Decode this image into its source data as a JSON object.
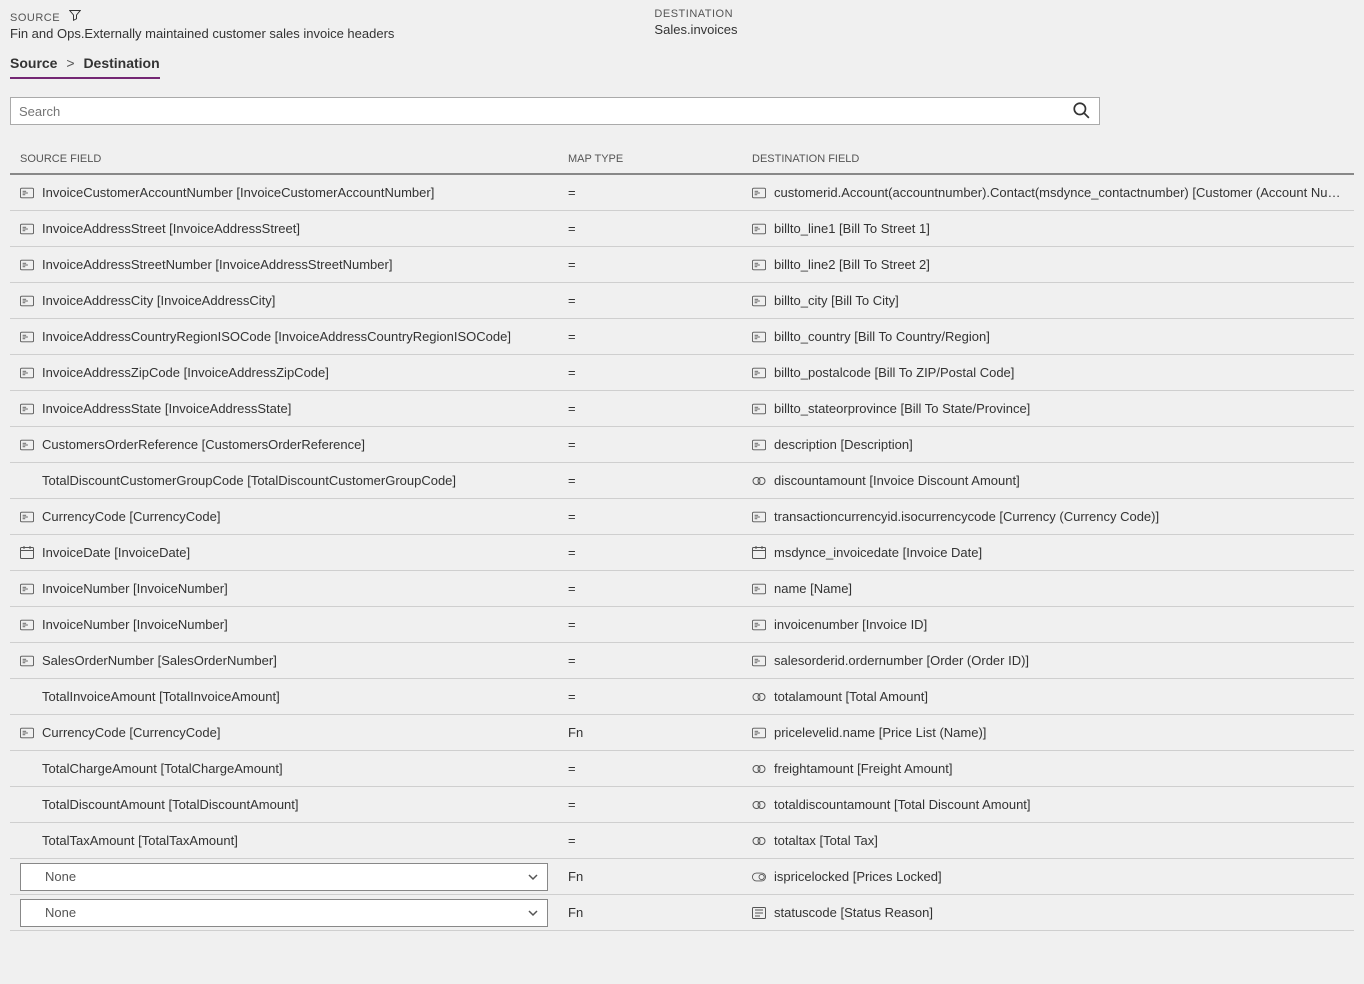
{
  "header": {
    "source_label": "SOURCE",
    "source_value": "Fin and Ops.Externally maintained customer sales invoice headers",
    "destination_label": "DESTINATION",
    "destination_value": "Sales.invoices"
  },
  "breadcrumb": {
    "part1": "Source",
    "sep": ">",
    "part2": "Destination"
  },
  "search": {
    "placeholder": "Search"
  },
  "columns": {
    "source": "SOURCE FIELD",
    "map": "MAP TYPE",
    "dest": "DESTINATION FIELD"
  },
  "rows": [
    {
      "src_icon": "text",
      "src": "InvoiceCustomerAccountNumber [InvoiceCustomerAccountNumber]",
      "map": "=",
      "dst_icon": "text",
      "dst": "customerid.Account(accountnumber).Contact(msdynce_contactnumber) [Customer (Account Number/Cont..."
    },
    {
      "src_icon": "text",
      "src": "InvoiceAddressStreet [InvoiceAddressStreet]",
      "map": "=",
      "dst_icon": "text",
      "dst": "billto_line1 [Bill To Street 1]"
    },
    {
      "src_icon": "text",
      "src": "InvoiceAddressStreetNumber [InvoiceAddressStreetNumber]",
      "map": "=",
      "dst_icon": "text",
      "dst": "billto_line2 [Bill To Street 2]"
    },
    {
      "src_icon": "text",
      "src": "InvoiceAddressCity [InvoiceAddressCity]",
      "map": "=",
      "dst_icon": "text",
      "dst": "billto_city [Bill To City]"
    },
    {
      "src_icon": "text",
      "src": "InvoiceAddressCountryRegionISOCode [InvoiceAddressCountryRegionISOCode]",
      "map": "=",
      "dst_icon": "text",
      "dst": "billto_country [Bill To Country/Region]"
    },
    {
      "src_icon": "text",
      "src": "InvoiceAddressZipCode [InvoiceAddressZipCode]",
      "map": "=",
      "dst_icon": "text",
      "dst": "billto_postalcode [Bill To ZIP/Postal Code]"
    },
    {
      "src_icon": "text",
      "src": "InvoiceAddressState [InvoiceAddressState]",
      "map": "=",
      "dst_icon": "text",
      "dst": "billto_stateorprovince [Bill To State/Province]"
    },
    {
      "src_icon": "text",
      "src": "CustomersOrderReference [CustomersOrderReference]",
      "map": "=",
      "dst_icon": "text",
      "dst": "description [Description]"
    },
    {
      "src_icon": "none",
      "src": "TotalDiscountCustomerGroupCode [TotalDiscountCustomerGroupCode]",
      "map": "=",
      "dst_icon": "money",
      "dst": "discountamount [Invoice Discount Amount]"
    },
    {
      "src_icon": "text",
      "src": "CurrencyCode [CurrencyCode]",
      "map": "=",
      "dst_icon": "text",
      "dst": "transactioncurrencyid.isocurrencycode [Currency (Currency Code)]"
    },
    {
      "src_icon": "date",
      "src": "InvoiceDate [InvoiceDate]",
      "map": "=",
      "dst_icon": "date",
      "dst": "msdynce_invoicedate [Invoice Date]"
    },
    {
      "src_icon": "text",
      "src": "InvoiceNumber [InvoiceNumber]",
      "map": "=",
      "dst_icon": "text",
      "dst": "name [Name]"
    },
    {
      "src_icon": "text",
      "src": "InvoiceNumber [InvoiceNumber]",
      "map": "=",
      "dst_icon": "text",
      "dst": "invoicenumber [Invoice ID]"
    },
    {
      "src_icon": "text",
      "src": "SalesOrderNumber [SalesOrderNumber]",
      "map": "=",
      "dst_icon": "text",
      "dst": "salesorderid.ordernumber [Order (Order ID)]"
    },
    {
      "src_icon": "none",
      "src": "TotalInvoiceAmount [TotalInvoiceAmount]",
      "map": "=",
      "dst_icon": "money",
      "dst": "totalamount [Total Amount]"
    },
    {
      "src_icon": "text",
      "src": "CurrencyCode [CurrencyCode]",
      "map": "Fn",
      "dst_icon": "text",
      "dst": "pricelevelid.name [Price List (Name)]"
    },
    {
      "src_icon": "none",
      "src": "TotalChargeAmount [TotalChargeAmount]",
      "map": "=",
      "dst_icon": "money",
      "dst": "freightamount [Freight Amount]"
    },
    {
      "src_icon": "none",
      "src": "TotalDiscountAmount [TotalDiscountAmount]",
      "map": "=",
      "dst_icon": "money",
      "dst": "totaldiscountamount [Total Discount Amount]"
    },
    {
      "src_icon": "none",
      "src": "TotalTaxAmount [TotalTaxAmount]",
      "map": "=",
      "dst_icon": "money",
      "dst": "totaltax [Total Tax]"
    },
    {
      "src_icon": "select",
      "src": "None",
      "map": "Fn",
      "dst_icon": "toggle",
      "dst": "ispricelocked [Prices Locked]"
    },
    {
      "src_icon": "select",
      "src": "None",
      "map": "Fn",
      "dst_icon": "status",
      "dst": "statuscode [Status Reason]"
    }
  ]
}
